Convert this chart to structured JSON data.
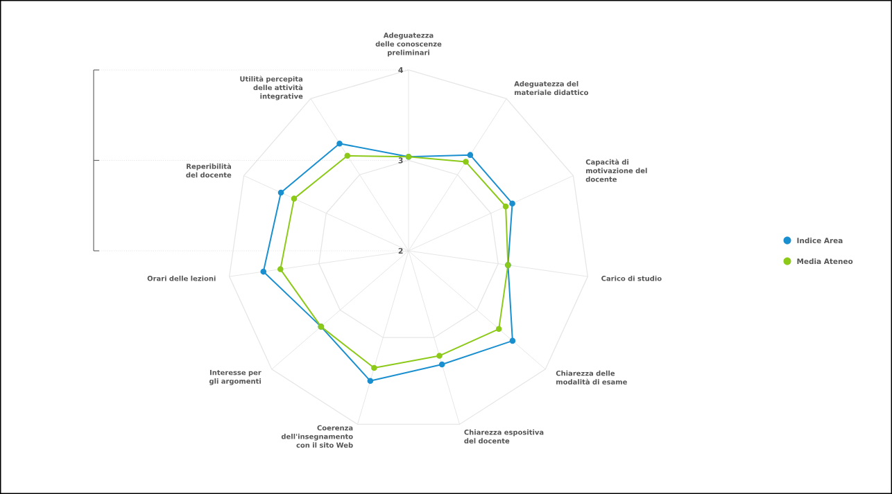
{
  "chart_data": {
    "type": "radar",
    "categories": [
      "Adeguatezza delle conoscenze preliminari",
      "Adeguatezza del materiale didattico",
      "Capacità di motivazione del docente",
      "Carico di studio",
      "Chiarezza delle modalità di esame",
      "Chiarezza espositiva del docente",
      "Coerenza dell'insegnamento con il sito Web",
      "Interesse per gli argomenti",
      "Orari delle lezioni",
      "Reperibilità del docente",
      "Utilità percepita delle attività integrative"
    ],
    "series": [
      {
        "name": "Indice Area",
        "color": "#1a8fcf",
        "values": [
          3.04,
          3.26,
          3.26,
          3.11,
          3.52,
          3.31,
          3.5,
          3.28,
          3.62,
          3.55,
          3.41
        ]
      },
      {
        "name": "Media Ateneo",
        "color": "#8cc919",
        "values": [
          3.04,
          3.17,
          3.18,
          3.11,
          3.32,
          3.21,
          3.35,
          3.28,
          3.43,
          3.39,
          3.25
        ]
      }
    ],
    "ylim": [
      2,
      4
    ],
    "yticks": [
      2,
      3,
      4
    ],
    "grid": true,
    "legend": "right",
    "marker": "circle"
  }
}
